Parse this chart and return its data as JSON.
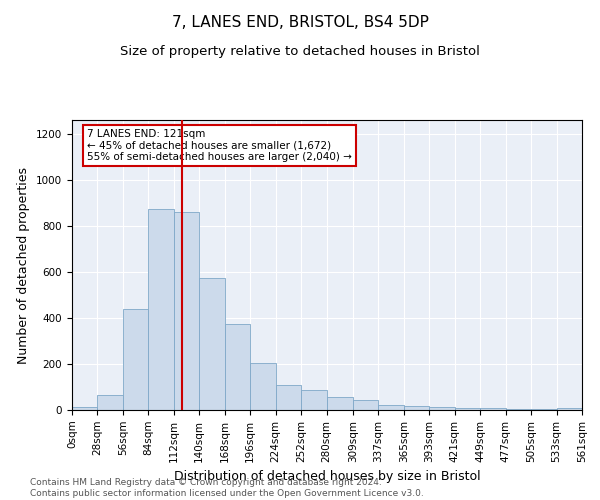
{
  "title": "7, LANES END, BRISTOL, BS4 5DP",
  "subtitle": "Size of property relative to detached houses in Bristol",
  "xlabel": "Distribution of detached houses by size in Bristol",
  "ylabel": "Number of detached properties",
  "bar_color": "#ccdaeb",
  "bar_edge_color": "#7fa8c8",
  "annotation_box_text": "7 LANES END: 121sqm\n← 45% of detached houses are smaller (1,672)\n55% of semi-detached houses are larger (2,040) →",
  "annotation_box_edge_color": "#cc0000",
  "vline_x": 121,
  "vline_color": "#cc0000",
  "footer_line1": "Contains HM Land Registry data © Crown copyright and database right 2024.",
  "footer_line2": "Contains public sector information licensed under the Open Government Licence v3.0.",
  "bin_edges": [
    0,
    28,
    56,
    84,
    112,
    140,
    168,
    196,
    224,
    252,
    280,
    309,
    337,
    365,
    393,
    421,
    449,
    477,
    505,
    533,
    561
  ],
  "bar_heights": [
    15,
    65,
    440,
    875,
    860,
    575,
    375,
    205,
    110,
    85,
    55,
    45,
    20,
    18,
    15,
    8,
    8,
    5,
    5,
    10
  ],
  "ylim": [
    0,
    1260
  ],
  "yticks": [
    0,
    200,
    400,
    600,
    800,
    1000,
    1200
  ],
  "background_color": "#eaeff7",
  "title_fontsize": 11,
  "subtitle_fontsize": 9.5,
  "axis_label_fontsize": 9,
  "tick_fontsize": 7.5,
  "footer_fontsize": 6.5
}
